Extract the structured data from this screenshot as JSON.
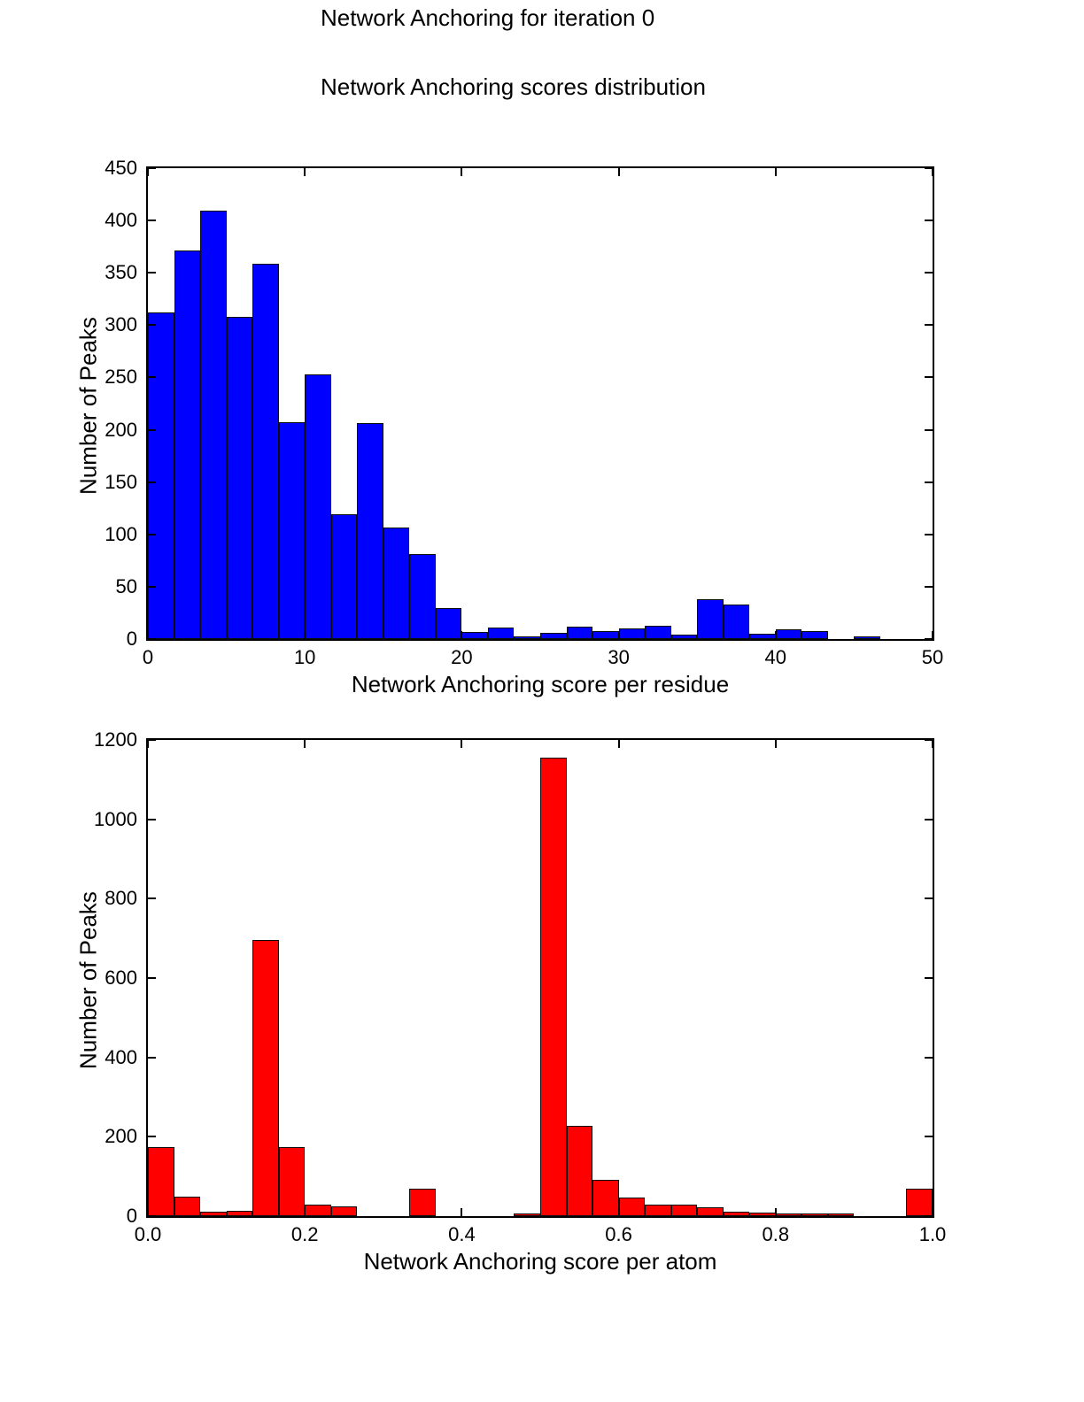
{
  "figure": {
    "suptitle": "Network Anchoring for iteration 0",
    "subtitle": "Network Anchoring scores distribution"
  },
  "chart_data": [
    {
      "type": "bar",
      "subtype": "histogram",
      "title": "",
      "xlabel": "Network Anchoring score per residue",
      "ylabel": "Number of Peaks",
      "xlim": [
        0,
        50
      ],
      "ylim": [
        0,
        450
      ],
      "grid": false,
      "legend": null,
      "bar_color": "#0000ff",
      "bar_edge_color": "#000000",
      "bin_start": 0,
      "bin_width": 1.6667,
      "values": [
        312,
        371,
        409,
        308,
        359,
        207,
        253,
        119,
        206,
        107,
        81,
        30,
        7,
        11,
        1,
        6,
        12,
        8,
        10,
        13,
        4,
        38,
        33,
        5,
        9,
        8,
        0,
        2,
        0,
        0
      ],
      "xticks": [
        0,
        10,
        20,
        30,
        40,
        50
      ],
      "xtick_labels": [
        "0",
        "10",
        "20",
        "30",
        "40",
        "50"
      ],
      "yticks": [
        0,
        50,
        100,
        150,
        200,
        250,
        300,
        350,
        400,
        450
      ],
      "ytick_labels": [
        "0",
        "50",
        "100",
        "150",
        "200",
        "250",
        "300",
        "350",
        "400",
        "450"
      ]
    },
    {
      "type": "bar",
      "subtype": "histogram",
      "title": "",
      "xlabel": "Network Anchoring score per atom",
      "ylabel": "Number of Peaks",
      "xlim": [
        0,
        1
      ],
      "ylim": [
        0,
        1200
      ],
      "grid": false,
      "legend": null,
      "bar_color": "#ff0000",
      "bar_edge_color": "#000000",
      "bin_start": 0,
      "bin_width": 0.033333,
      "values": [
        175,
        50,
        11,
        13,
        695,
        175,
        28,
        25,
        0,
        0,
        70,
        0,
        0,
        0,
        4,
        1155,
        228,
        92,
        46,
        30,
        28,
        22,
        12,
        10,
        6,
        3,
        1,
        0,
        0,
        70
      ],
      "xticks": [
        0,
        0.2,
        0.4,
        0.6,
        0.8,
        1.0
      ],
      "xtick_labels": [
        "0.0",
        "0.2",
        "0.4",
        "0.6",
        "0.8",
        "1.0"
      ],
      "yticks": [
        0,
        200,
        400,
        600,
        800,
        1000,
        1200
      ],
      "ytick_labels": [
        "0",
        "200",
        "400",
        "600",
        "800",
        "1000",
        "1200"
      ]
    }
  ]
}
